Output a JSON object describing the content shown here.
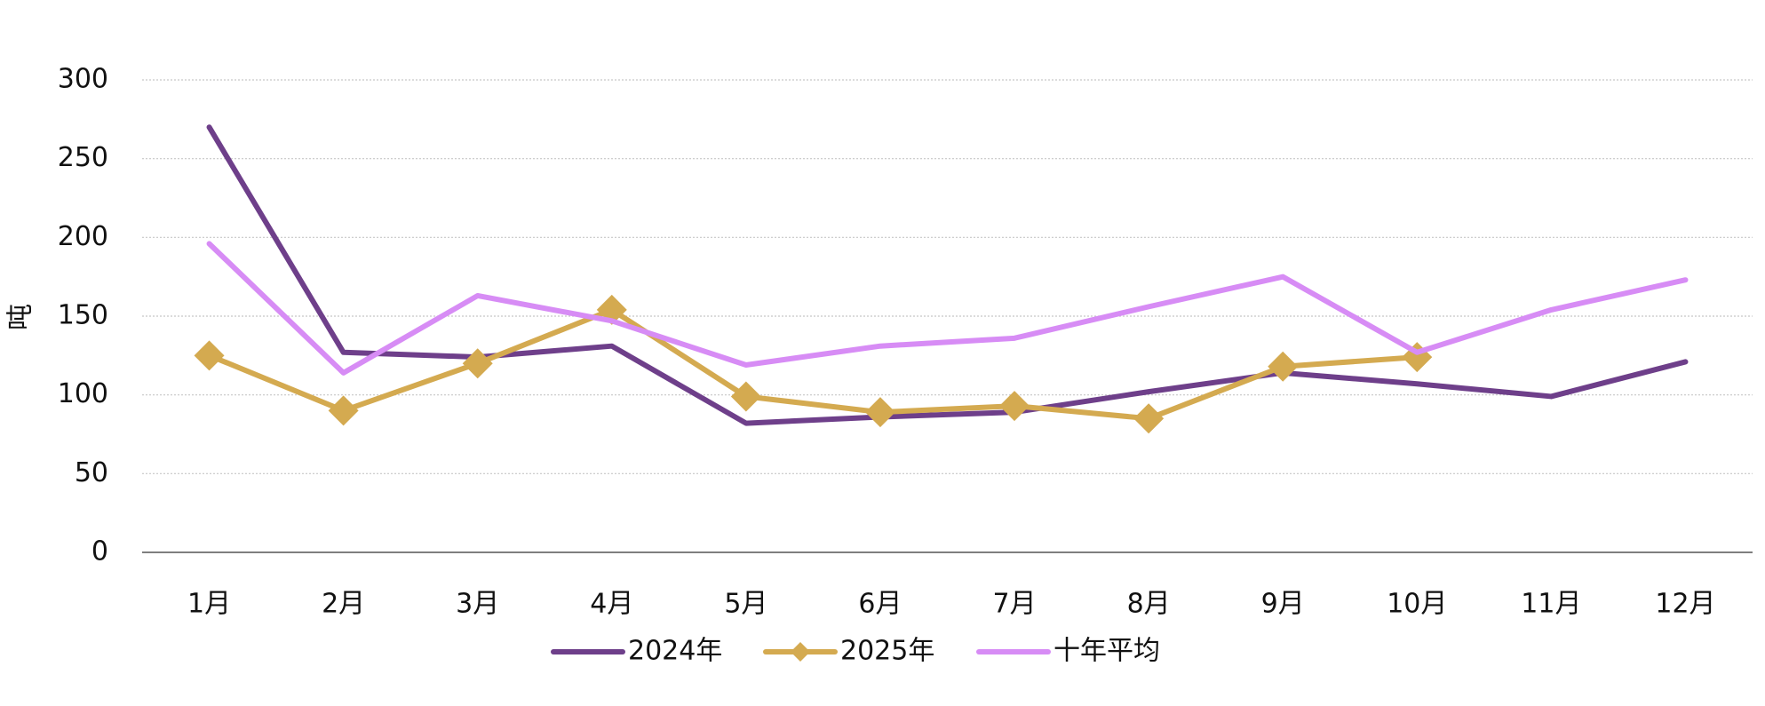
{
  "chart_data": {
    "type": "line",
    "y_label": "吨",
    "categories": [
      "1月",
      "2月",
      "3月",
      "4月",
      "5月",
      "6月",
      "7月",
      "8月",
      "9月",
      "10月",
      "11月",
      "12月"
    ],
    "series": [
      {
        "name": "2024年",
        "color": "#6e3f8a",
        "marker": "none",
        "values": [
          270,
          127,
          124,
          131,
          82,
          86,
          89,
          102,
          114,
          107,
          99,
          121
        ]
      },
      {
        "name": "2025年",
        "color": "#d4aa50",
        "marker": "diamond",
        "values": [
          125,
          90,
          120,
          154,
          99,
          89,
          93,
          85,
          118,
          124,
          null,
          null
        ]
      },
      {
        "name": "十年平均",
        "color": "#d78cf5",
        "marker": "none",
        "values": [
          196,
          114,
          163,
          147,
          119,
          131,
          136,
          156,
          175,
          127,
          154,
          173
        ]
      }
    ],
    "ylim": [
      0,
      300
    ],
    "yticks": [
      0,
      50,
      100,
      150,
      200,
      250,
      300
    ],
    "grid": true,
    "legend": "bottom"
  }
}
